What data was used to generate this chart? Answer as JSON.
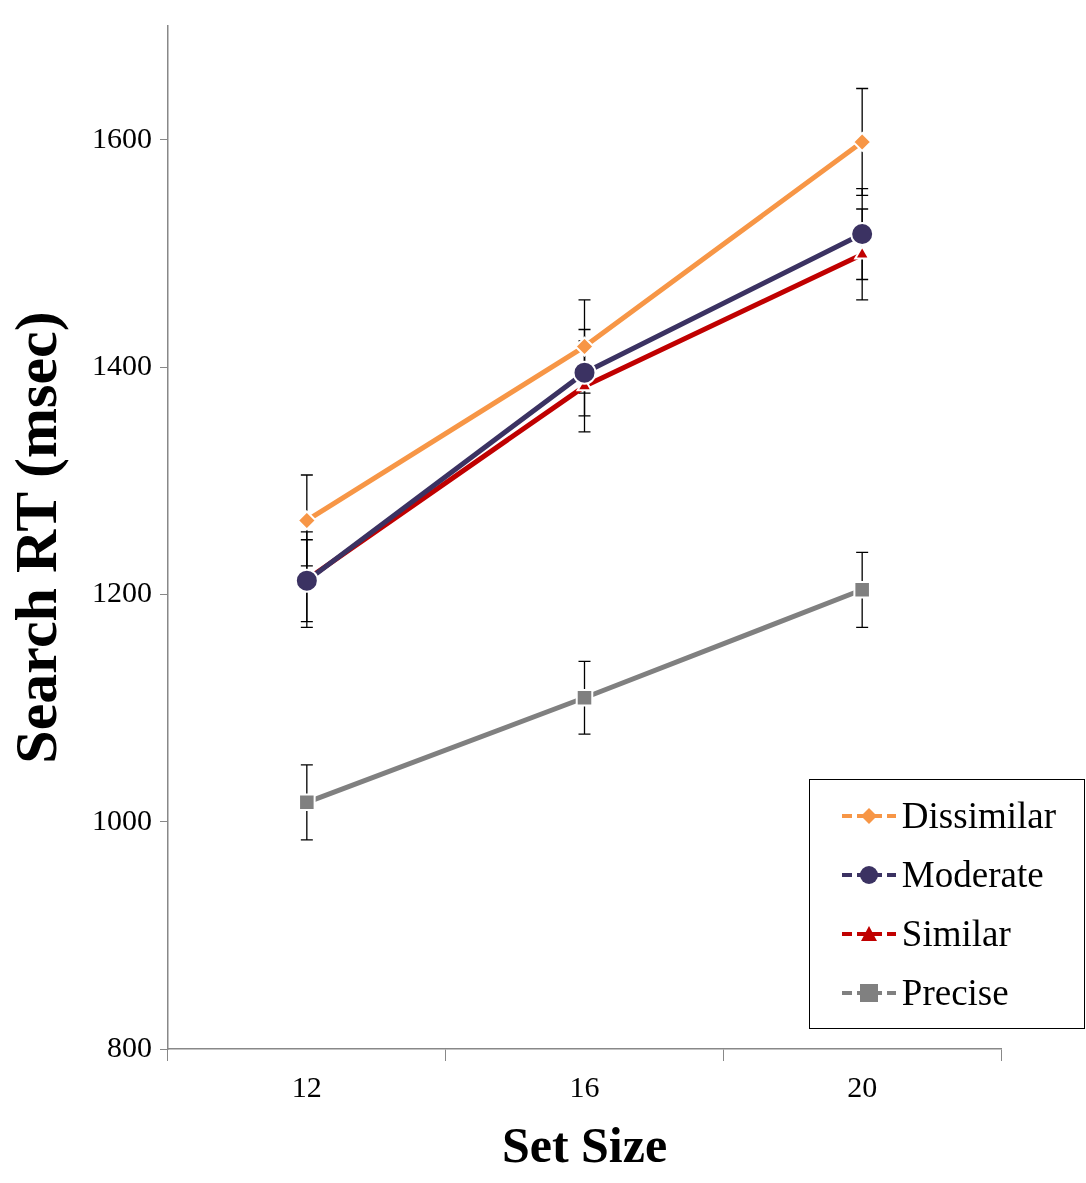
{
  "chart_data": {
    "type": "line",
    "xlabel": "Set Size",
    "ylabel": "Search RT (msec)",
    "categories": [
      "12",
      "16",
      "20"
    ],
    "series": [
      {
        "name": "Dissimilar",
        "color": "#f79646",
        "marker": "diamond",
        "values": [
          1265,
          1418,
          1598
        ],
        "errors": [
          40,
          41,
          47
        ]
      },
      {
        "name": "Moderate",
        "color": "#3b3262",
        "marker": "circle",
        "values": [
          1212,
          1395,
          1517
        ],
        "errors": [
          36,
          38,
          40
        ]
      },
      {
        "name": "Similar",
        "color": "#c00000",
        "marker": "triangle",
        "values": [
          1213,
          1383,
          1499
        ],
        "errors": [
          42,
          40,
          40
        ]
      },
      {
        "name": "Precise",
        "color": "#808080",
        "marker": "square",
        "values": [
          1017,
          1109,
          1204
        ],
        "errors": [
          33,
          32,
          33
        ]
      }
    ],
    "ylim": [
      800,
      1700
    ],
    "yticks": [
      800,
      1000,
      1200,
      1400,
      1600
    ],
    "grid": false,
    "legend": "bottom right",
    "line_style": "solid"
  }
}
